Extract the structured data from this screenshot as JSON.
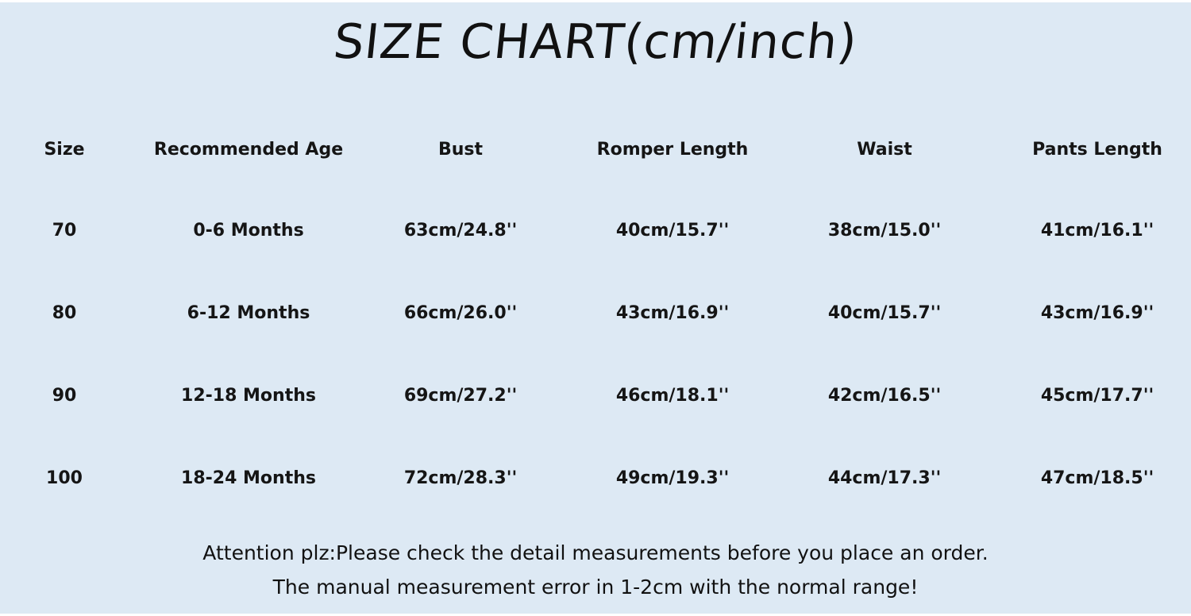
{
  "title": "SIZE CHART(cm/inch)",
  "table": {
    "headers": [
      "Size",
      "Recommended Age",
      "Bust",
      "Romper Length",
      "Waist",
      "Pants Length"
    ],
    "rows": [
      [
        "70",
        "0-6 Months",
        "63cm/24.8''",
        "40cm/15.7''",
        "38cm/15.0''",
        "41cm/16.1''"
      ],
      [
        "80",
        "6-12 Months",
        "66cm/26.0''",
        "43cm/16.9''",
        "40cm/15.7''",
        "43cm/16.9''"
      ],
      [
        "90",
        "12-18 Months",
        "69cm/27.2''",
        "46cm/18.1''",
        "42cm/16.5''",
        "45cm/17.7''"
      ],
      [
        "100",
        "18-24 Months",
        "72cm/28.3''",
        "49cm/19.3''",
        "44cm/17.3''",
        "47cm/18.5''"
      ]
    ]
  },
  "notes": [
    "Attention plz:Please check the detail measurements before you place an order.",
    "The manual measurement error in 1-2cm with the normal range!"
  ],
  "colors": {
    "background": "#dde9f4",
    "text": "#151515"
  }
}
